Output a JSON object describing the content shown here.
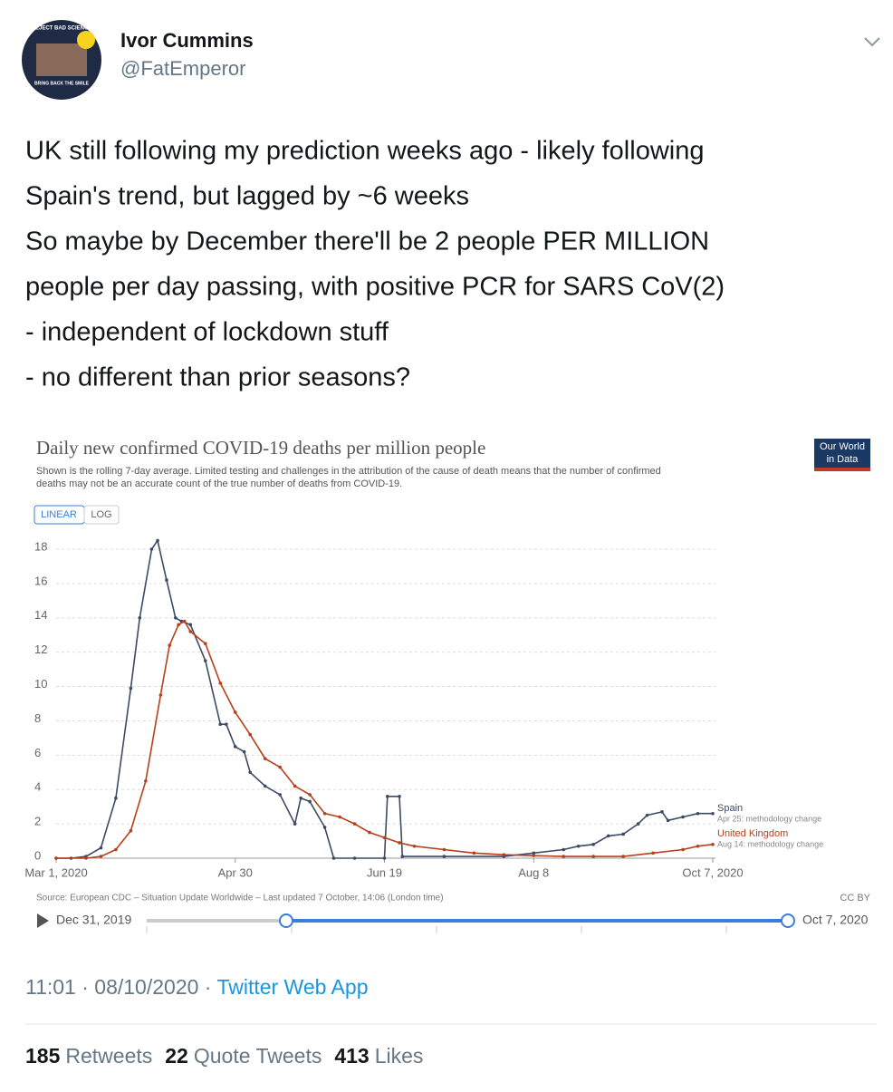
{
  "tweet": {
    "name": "Ivor Cummins",
    "handle": "@FatEmperor",
    "avatar_text": [
      "REJECT BAD SCIENCE",
      "BRING BACK THE SMILE"
    ],
    "lines": [
      "UK still following my prediction weeks ago - likely following",
      "Spain's trend, but lagged by ~6 weeks",
      "So maybe by December there'll be 2 people PER MILLION",
      "people per day passing, with positive PCR for SARS CoV(2)",
      " - independent of lockdown stuff",
      " - no different than prior seasons?"
    ],
    "time": "11:01 · 08/10/2020",
    "source": "Twitter Web App",
    "stats": [
      {
        "count": "185",
        "label": "Retweets"
      },
      {
        "count": "22",
        "label": "Quote Tweets"
      },
      {
        "count": "413",
        "label": "Likes"
      }
    ]
  },
  "chart_data": {
    "type": "line",
    "title": "Daily new confirmed COVID-19 deaths per million people",
    "subtitle": [
      "Shown is the rolling 7-day average. Limited testing and challenges in the attribution of the cause of death means that the number of confirmed",
      "deaths may not be an accurate count of the true number of deaths from COVID-19."
    ],
    "logo": [
      "Our World",
      "in Data"
    ],
    "scale_buttons": [
      "LINEAR",
      "LOG"
    ],
    "source_note": "Source: European CDC – Situation Update Worldwide – Last updated 7 October, 14:06 (London time)",
    "license": "CC BY",
    "timeline": {
      "start": "Dec 31, 2019",
      "end": "Oct 7, 2020"
    },
    "xlim": [
      "2020-03-01",
      "2020-10-07"
    ],
    "xticks": [
      {
        "value": "2020-03-01",
        "label": "Mar 1, 2020"
      },
      {
        "value": "2020-04-30",
        "label": "Apr 30"
      },
      {
        "value": "2020-06-19",
        "label": "Jun 19"
      },
      {
        "value": "2020-08-08",
        "label": "Aug 8"
      },
      {
        "value": "2020-10-07",
        "label": "Oct 7, 2020"
      }
    ],
    "ylim": [
      0,
      18
    ],
    "yticks": [
      0,
      2,
      4,
      6,
      8,
      10,
      12,
      14,
      16,
      18
    ],
    "grid": true,
    "series": [
      {
        "name": "Spain",
        "note": "Apr 25: methodology change",
        "color": "#3c4a63",
        "x": [
          "2020-03-01",
          "2020-03-06",
          "2020-03-11",
          "2020-03-16",
          "2020-03-21",
          "2020-03-26",
          "2020-03-29",
          "2020-04-02",
          "2020-04-04",
          "2020-04-07",
          "2020-04-10",
          "2020-04-12",
          "2020-04-15",
          "2020-04-20",
          "2020-04-25",
          "2020-04-27",
          "2020-04-30",
          "2020-05-03",
          "2020-05-05",
          "2020-05-10",
          "2020-05-15",
          "2020-05-20",
          "2020-05-22",
          "2020-05-25",
          "2020-05-30",
          "2020-06-02",
          "2020-06-09",
          "2020-06-19",
          "2020-06-20",
          "2020-06-24",
          "2020-06-25",
          "2020-07-09",
          "2020-07-29",
          "2020-08-08",
          "2020-08-18",
          "2020-08-23",
          "2020-08-28",
          "2020-09-02",
          "2020-09-07",
          "2020-09-12",
          "2020-09-15",
          "2020-09-20",
          "2020-09-22",
          "2020-09-27",
          "2020-10-02",
          "2020-10-07"
        ],
        "values": [
          0,
          0,
          0.1,
          0.6,
          3.5,
          9.9,
          14,
          18,
          18.5,
          16.2,
          14,
          13.8,
          13.6,
          11.5,
          7.8,
          7.8,
          6.5,
          6.2,
          5,
          4.2,
          3.7,
          2,
          3.5,
          3.3,
          1.8,
          0,
          0,
          0,
          3.6,
          3.6,
          0.1,
          0.1,
          0.1,
          0.3,
          0.5,
          0.7,
          0.8,
          1.3,
          1.4,
          2,
          2.5,
          2.7,
          2.2,
          2.4,
          2.6,
          2.6
        ]
      },
      {
        "name": "United Kingdom",
        "note": "Aug 14: methodology change",
        "color": "#b5401a",
        "x": [
          "2020-03-01",
          "2020-03-11",
          "2020-03-16",
          "2020-03-21",
          "2020-03-26",
          "2020-03-31",
          "2020-04-05",
          "2020-04-08",
          "2020-04-11",
          "2020-04-13",
          "2020-04-15",
          "2020-04-20",
          "2020-04-25",
          "2020-04-30",
          "2020-05-05",
          "2020-05-10",
          "2020-05-15",
          "2020-05-20",
          "2020-05-25",
          "2020-05-30",
          "2020-06-04",
          "2020-06-09",
          "2020-06-14",
          "2020-06-19",
          "2020-06-24",
          "2020-06-29",
          "2020-07-09",
          "2020-07-19",
          "2020-07-29",
          "2020-08-08",
          "2020-08-18",
          "2020-08-28",
          "2020-09-07",
          "2020-09-17",
          "2020-09-27",
          "2020-10-02",
          "2020-10-07"
        ],
        "values": [
          0,
          0,
          0.1,
          0.5,
          1.6,
          4.5,
          9.5,
          12.4,
          13.6,
          13.8,
          13.2,
          12.5,
          10.2,
          8.5,
          7.2,
          5.8,
          5.3,
          4.2,
          3.7,
          2.6,
          2.4,
          2,
          1.5,
          1.2,
          0.9,
          0.7,
          0.5,
          0.3,
          0.2,
          0.15,
          0.1,
          0.1,
          0.1,
          0.3,
          0.5,
          0.7,
          0.8
        ]
      }
    ]
  }
}
